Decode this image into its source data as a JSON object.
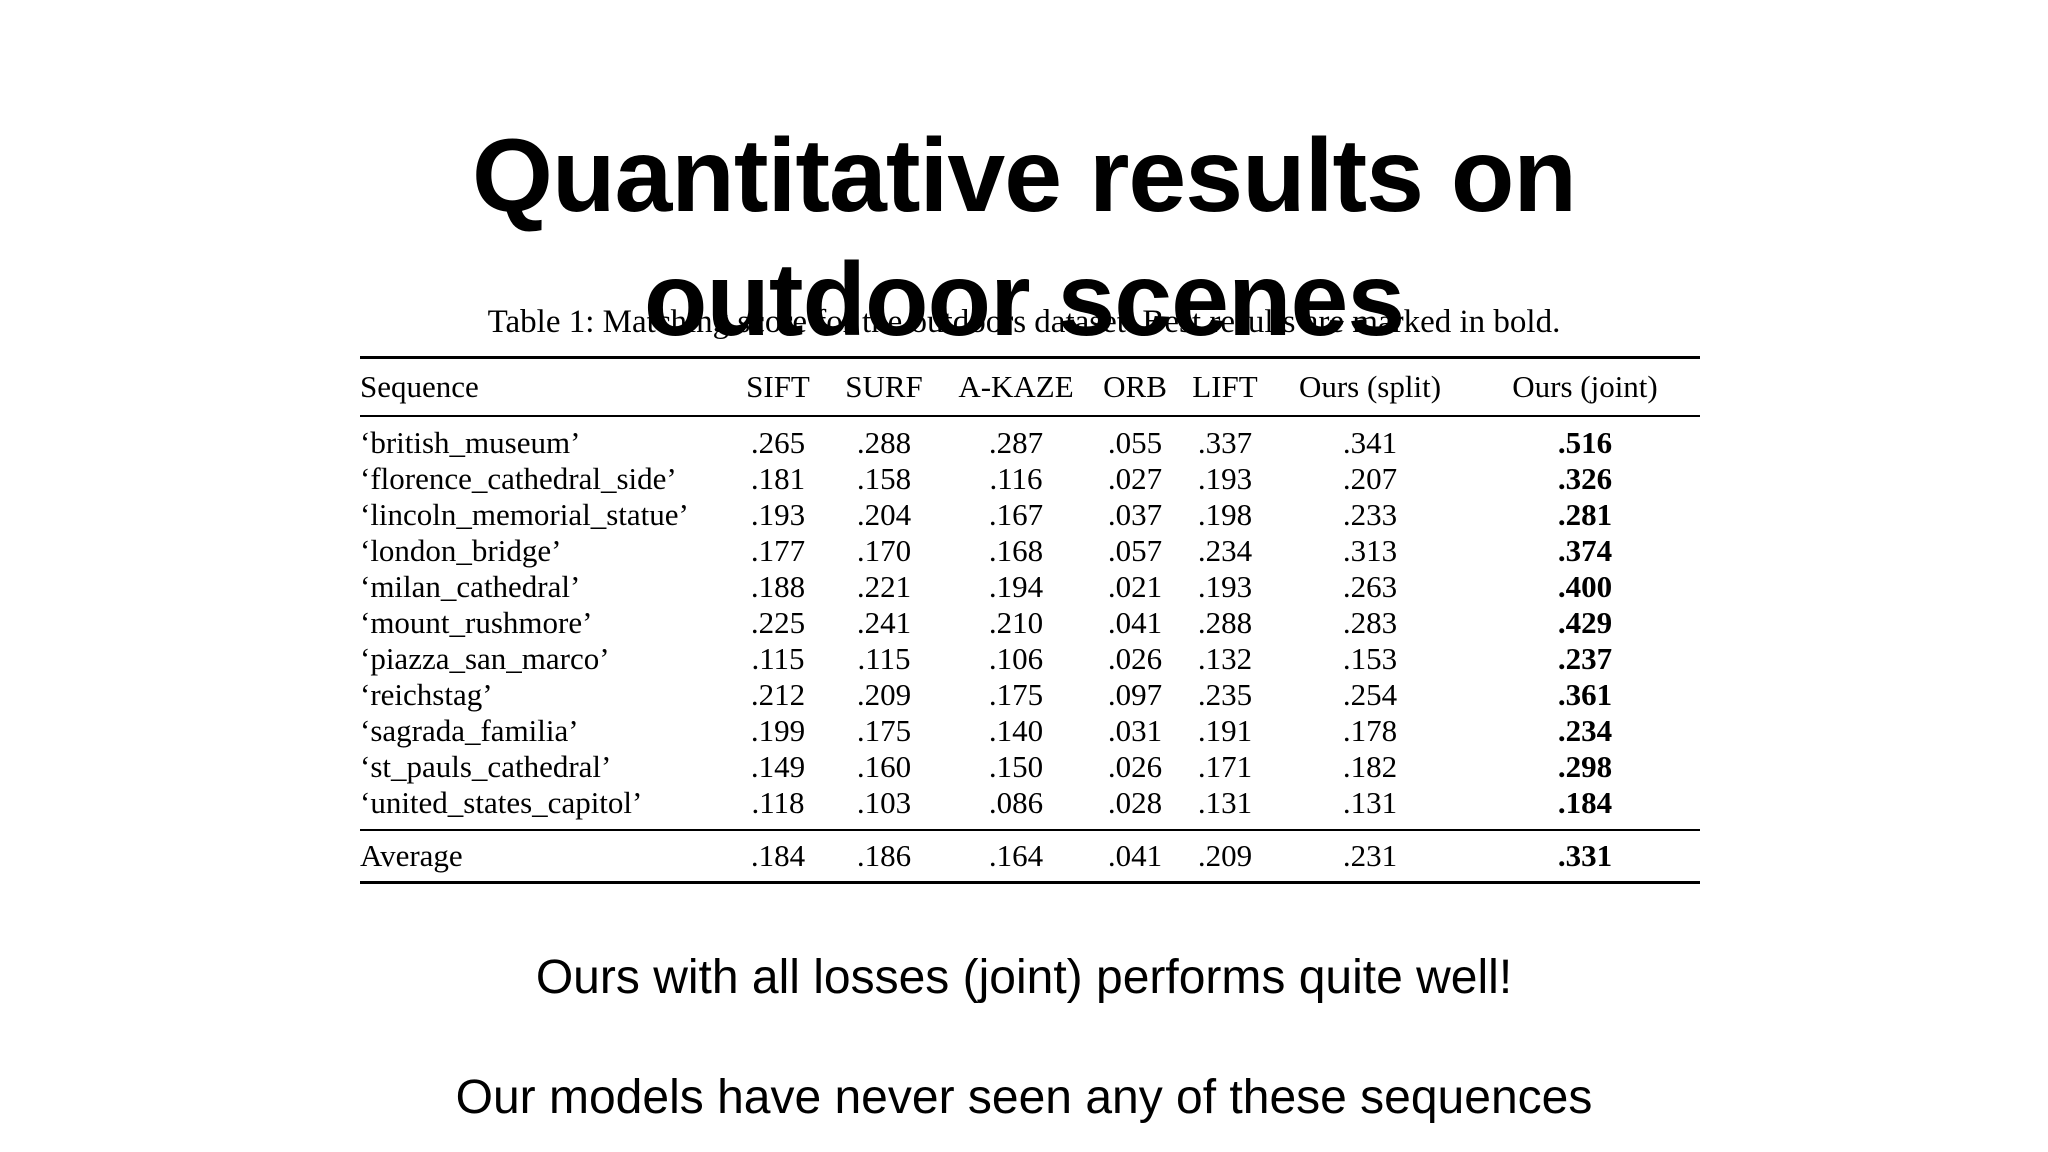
{
  "slide": {
    "title_line1": "Quantitative results on",
    "title_line2": "outdoor scenes",
    "note_1": "Ours with all losses (joint) performs quite well!",
    "note_2": "Our models have never seen any of these sequences"
  },
  "table": {
    "caption": "Table 1: Matching score for the outdoors dataset. Best results are marked in bold.",
    "headers": [
      "Sequence",
      "SIFT",
      "SURF",
      "A-KAZE",
      "ORB",
      "LIFT",
      "Ours (split)",
      "Ours (joint)"
    ],
    "rows": [
      {
        "seq": "‘british_museum’",
        "vals": [
          ".265",
          ".288",
          ".287",
          ".055",
          ".337",
          ".341",
          ".516"
        ]
      },
      {
        "seq": "‘florence_cathedral_side’",
        "vals": [
          ".181",
          ".158",
          ".116",
          ".027",
          ".193",
          ".207",
          ".326"
        ]
      },
      {
        "seq": "‘lincoln_memorial_statue’",
        "vals": [
          ".193",
          ".204",
          ".167",
          ".037",
          ".198",
          ".233",
          ".281"
        ]
      },
      {
        "seq": "‘london_bridge’",
        "vals": [
          ".177",
          ".170",
          ".168",
          ".057",
          ".234",
          ".313",
          ".374"
        ]
      },
      {
        "seq": "‘milan_cathedral’",
        "vals": [
          ".188",
          ".221",
          ".194",
          ".021",
          ".193",
          ".263",
          ".400"
        ]
      },
      {
        "seq": "‘mount_rushmore’",
        "vals": [
          ".225",
          ".241",
          ".210",
          ".041",
          ".288",
          ".283",
          ".429"
        ]
      },
      {
        "seq": "‘piazza_san_marco’",
        "vals": [
          ".115",
          ".115",
          ".106",
          ".026",
          ".132",
          ".153",
          ".237"
        ]
      },
      {
        "seq": "‘reichstag’",
        "vals": [
          ".212",
          ".209",
          ".175",
          ".097",
          ".235",
          ".254",
          ".361"
        ]
      },
      {
        "seq": "‘sagrada_familia’",
        "vals": [
          ".199",
          ".175",
          ".140",
          ".031",
          ".191",
          ".178",
          ".234"
        ]
      },
      {
        "seq": "‘st_pauls_cathedral’",
        "vals": [
          ".149",
          ".160",
          ".150",
          ".026",
          ".171",
          ".182",
          ".298"
        ]
      },
      {
        "seq": "‘united_states_capitol’",
        "vals": [
          ".118",
          ".103",
          ".086",
          ".028",
          ".131",
          ".131",
          ".184"
        ]
      }
    ],
    "average": {
      "seq": "Average",
      "vals": [
        ".184",
        ".186",
        ".164",
        ".041",
        ".209",
        ".231",
        ".331"
      ]
    }
  }
}
